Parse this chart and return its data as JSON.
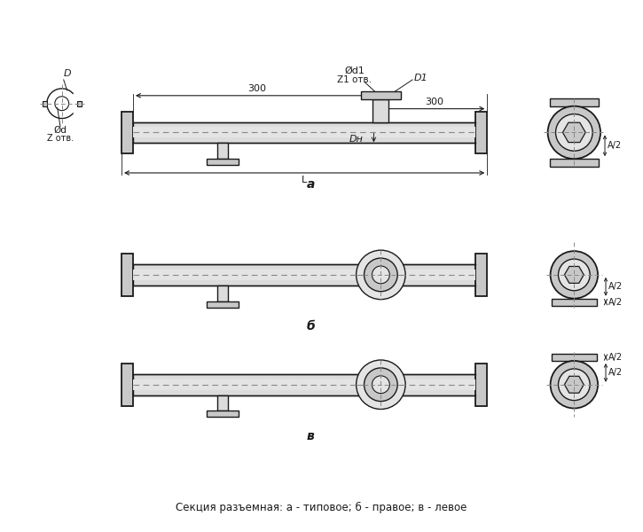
{
  "bg_color": "#ffffff",
  "line_color": "#1a1a1a",
  "fill_gray": "#c8c8c8",
  "fill_light": "#e4e4e4",
  "fill_tube": "#dcdcdc",
  "dashed_color": "#888888",
  "title_text": "Секция разъемная: а - типовое; б - правое; в - левое",
  "label_a": "а",
  "label_b": "б",
  "label_v": "в",
  "dim_300": "300",
  "dim_L": "L",
  "dim_Dn": "Dн",
  "dim_A2": "A/2",
  "dim_D1": "D1",
  "dim_Od1": "Ød1",
  "dim_Z1": "Z1 отв.",
  "dim_D": "D",
  "dim_Od": "Ød",
  "dim_Zotv": "Z отв."
}
